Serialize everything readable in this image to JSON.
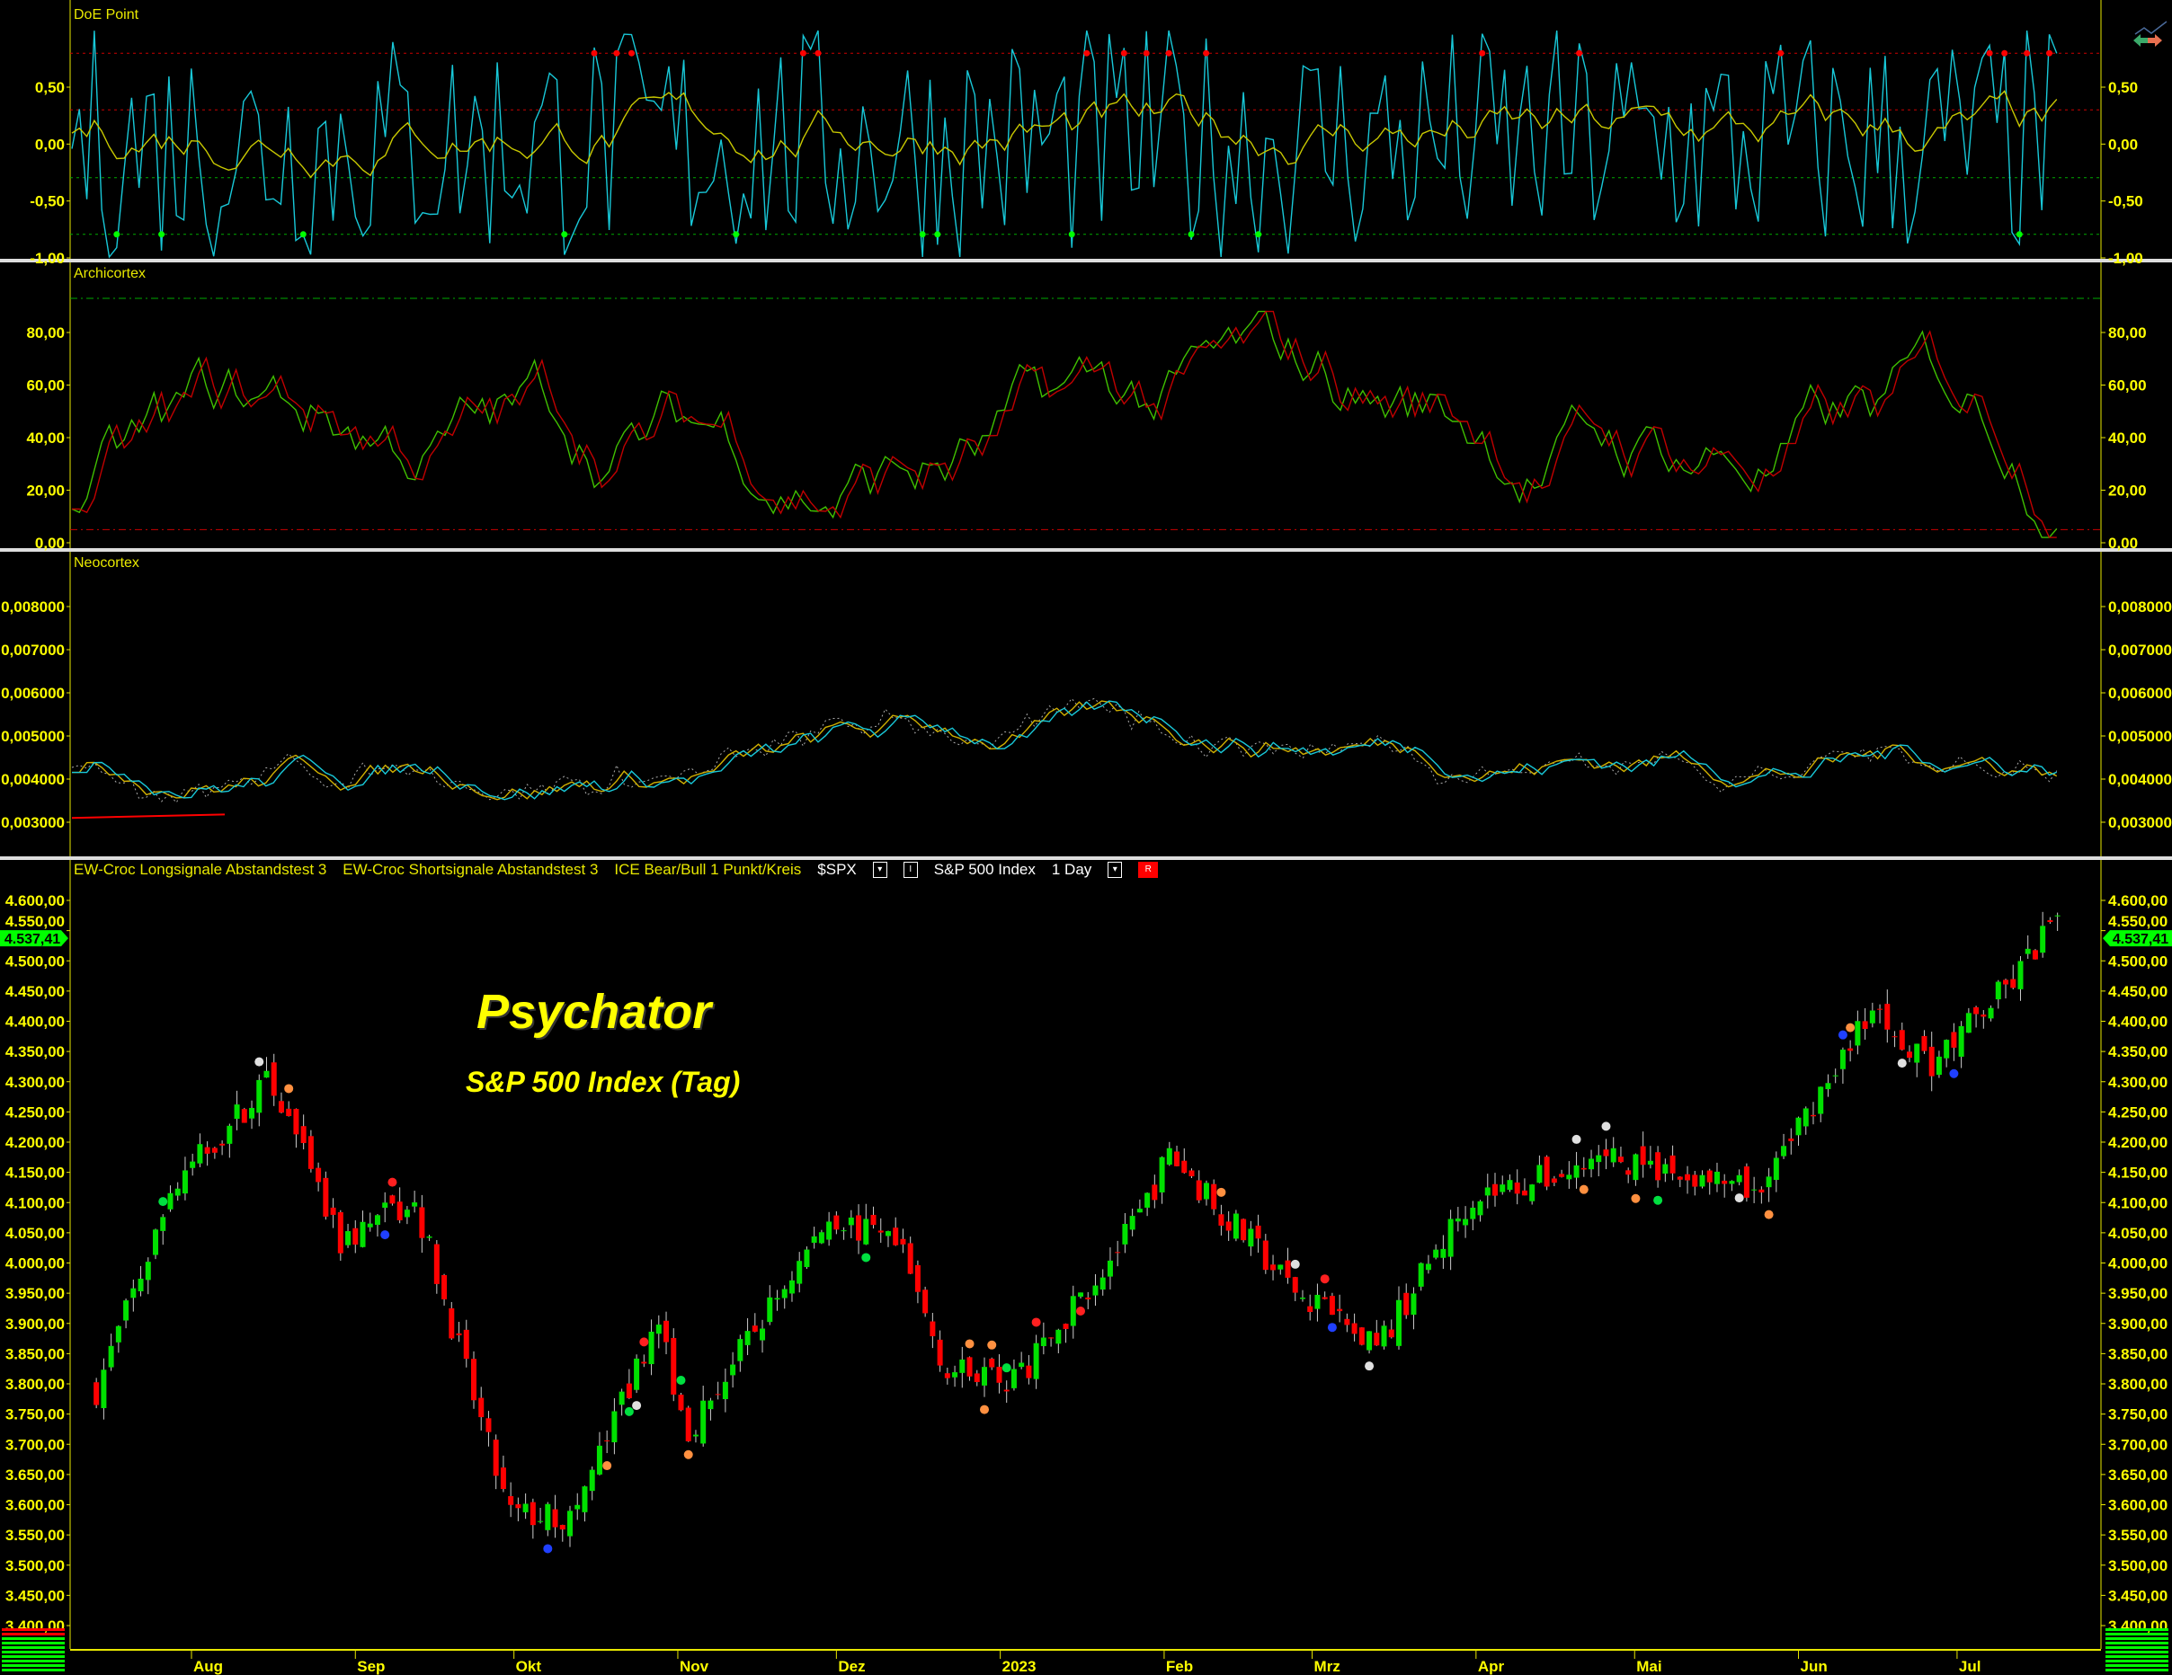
{
  "panels": {
    "doe": "DoE Point",
    "archi": "Archicortex",
    "neo": "Neocortex"
  },
  "legend": {
    "long": "EW-Croc Longsignale Abstandstest 3",
    "short": "EW-Croc Shortsignale Abstandstest 3",
    "ice": "ICE Bear/Bull 1 Punkt/Kreis",
    "symbol": "$SPX",
    "style_btn": "I",
    "name": "S&P 500 Index",
    "interval": "1 Day",
    "r_btn": "R"
  },
  "overlay": {
    "title": "Psychator",
    "subtitle": "S&P 500 Index (Tag)"
  },
  "colors": {
    "up": "#00e000",
    "down": "#ff0000",
    "axis": "#e8e800",
    "doe_fast": "#18c8d8",
    "doe_slow": "#c8c800",
    "archi_a": "#40c000",
    "archi_b": "#c00000"
  },
  "chart_data": [
    {
      "type": "line",
      "panel": "DoE Point",
      "yticks": [
        "0,50",
        "0,00",
        "-0,50",
        "-1,00"
      ],
      "ylim": [
        -1,
        1
      ],
      "levels": [
        0.8,
        0.3,
        -0.3,
        -0.8
      ]
    },
    {
      "type": "line",
      "panel": "Archicortex",
      "yticks": [
        "80,00",
        "60,00",
        "40,00",
        "20,00",
        "0,00"
      ],
      "ylim": [
        0,
        95
      ],
      "levels": [
        93,
        5
      ]
    },
    {
      "type": "line",
      "panel": "Neocortex",
      "yticks": [
        "0,008000",
        "0,007000",
        "0,006000",
        "0,005000",
        "0,004000",
        "0,003000"
      ],
      "ylim": [
        0.0022,
        0.0088
      ]
    },
    {
      "type": "candlestick",
      "panel": "S&P 500 Index",
      "last_price": "4.537,41",
      "yticks": [
        "4.600,00",
        "4.550,00",
        "4.500,00",
        "4.450,00",
        "4.400,00",
        "4.350,00",
        "4.300,00",
        "4.250,00",
        "4.200,00",
        "4.150,00",
        "4.100,00",
        "4.050,00",
        "4.000,00",
        "3.950,00",
        "3.900,00",
        "3.850,00",
        "3.800,00",
        "3.750,00",
        "3.700,00",
        "3.650,00",
        "3.600,00",
        "3.550,00",
        "3.500,00",
        "3.450,00",
        "3.400,00"
      ],
      "ylim": [
        3390,
        4640
      ],
      "xticks": [
        "Aug",
        "Sep",
        "Okt",
        "Nov",
        "Dez",
        "2023",
        "Feb",
        "Mrz",
        "Apr",
        "Mai",
        "Jun",
        "Jul"
      ],
      "close_anchors": [
        [
          "2022-07-14",
          3790
        ],
        [
          "2022-07-29",
          4130
        ],
        [
          "2022-08-16",
          4305
        ],
        [
          "2022-08-29",
          4030
        ],
        [
          "2022-09-12",
          4110
        ],
        [
          "2022-09-30",
          3585
        ],
        [
          "2022-10-12",
          3577
        ],
        [
          "2022-10-28",
          3900
        ],
        [
          "2022-11-03",
          3720
        ],
        [
          "2022-11-30",
          4080
        ],
        [
          "2022-12-13",
          4020
        ],
        [
          "2022-12-22",
          3820
        ],
        [
          "2023-01-05",
          3810
        ],
        [
          "2023-01-27",
          4070
        ],
        [
          "2023-02-02",
          4180
        ],
        [
          "2023-02-24",
          3970
        ],
        [
          "2023-03-13",
          3855
        ],
        [
          "2023-03-31",
          4110
        ],
        [
          "2023-04-28",
          4170
        ],
        [
          "2023-05-24",
          4115
        ],
        [
          "2023-06-15",
          4425
        ],
        [
          "2023-06-26",
          4330
        ],
        [
          "2023-07-12",
          4470
        ],
        [
          "2023-07-19",
          4565
        ],
        [
          "2023-07-21",
          4537
        ]
      ]
    }
  ]
}
